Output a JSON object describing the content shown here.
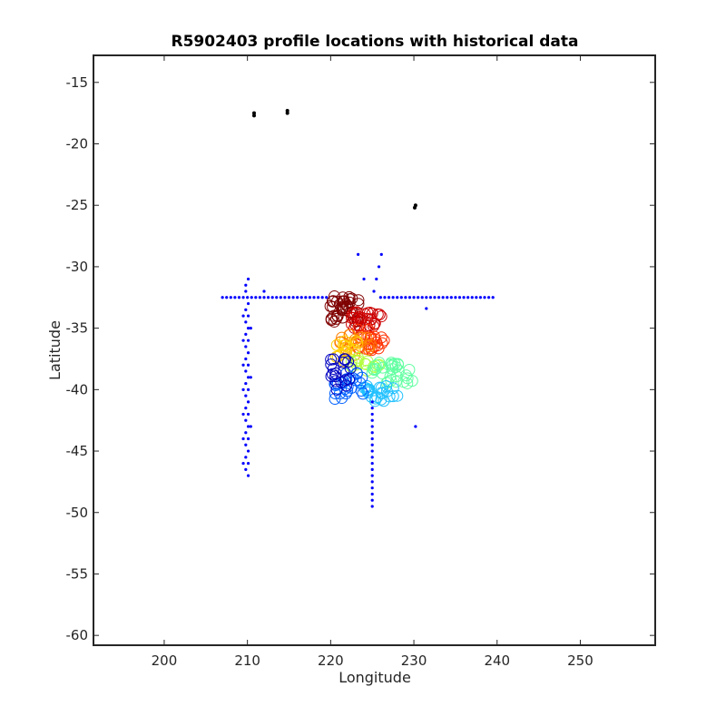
{
  "chart_data": {
    "type": "scatter",
    "title": "R5902403 profile locations with historical data",
    "xlabel": "Longitude",
    "ylabel": "Latitude",
    "xlim": [
      191.5,
      259.0
    ],
    "ylim": [
      -60.8,
      -12.8
    ],
    "xticks": [
      200,
      210,
      220,
      230,
      240,
      250
    ],
    "yticks": [
      -15,
      -20,
      -25,
      -30,
      -35,
      -40,
      -45,
      -50,
      -55,
      -60
    ],
    "grid": false,
    "legend": "none",
    "colormap": "jet",
    "series": [
      {
        "marker": "dot",
        "color": "#0000ff",
        "points": [
          [
            207.0,
            -32.5
          ],
          [
            207.5,
            -32.5
          ],
          [
            208.0,
            -32.5
          ],
          [
            208.5,
            -32.5
          ],
          [
            209.0,
            -32.5
          ],
          [
            209.5,
            -32.5
          ],
          [
            210.0,
            -32.5
          ],
          [
            210.5,
            -32.5
          ],
          [
            211.0,
            -32.5
          ],
          [
            211.5,
            -32.5
          ],
          [
            212.0,
            -32.5
          ],
          [
            212.5,
            -32.5
          ],
          [
            213.0,
            -32.5
          ],
          [
            213.5,
            -32.5
          ],
          [
            214.0,
            -32.5
          ],
          [
            214.5,
            -32.5
          ],
          [
            215.0,
            -32.5
          ],
          [
            215.5,
            -32.5
          ],
          [
            216.0,
            -32.5
          ],
          [
            216.5,
            -32.5
          ],
          [
            217.0,
            -32.5
          ],
          [
            217.5,
            -32.5
          ],
          [
            218.0,
            -32.5
          ],
          [
            218.5,
            -32.5
          ],
          [
            219.0,
            -32.5
          ],
          [
            219.5,
            -32.5
          ],
          [
            226.0,
            -32.5
          ],
          [
            226.5,
            -32.5
          ],
          [
            227.0,
            -32.5
          ],
          [
            227.5,
            -32.5
          ],
          [
            228.0,
            -32.5
          ],
          [
            228.5,
            -32.5
          ],
          [
            229.0,
            -32.5
          ],
          [
            229.5,
            -32.5
          ],
          [
            230.0,
            -32.5
          ],
          [
            230.5,
            -32.5
          ],
          [
            231.0,
            -32.5
          ],
          [
            231.5,
            -32.5
          ],
          [
            232.0,
            -32.5
          ],
          [
            232.5,
            -32.5
          ],
          [
            233.0,
            -32.5
          ],
          [
            233.5,
            -32.5
          ],
          [
            234.0,
            -32.5
          ],
          [
            234.5,
            -32.5
          ],
          [
            235.0,
            -32.5
          ],
          [
            235.5,
            -32.5
          ],
          [
            236.0,
            -32.5
          ],
          [
            236.5,
            -32.5
          ],
          [
            237.0,
            -32.5
          ],
          [
            237.5,
            -32.5
          ],
          [
            238.0,
            -32.5
          ],
          [
            238.5,
            -32.5
          ],
          [
            239.0,
            -32.5
          ],
          [
            239.5,
            -32.5
          ],
          [
            209.8,
            -31.5
          ],
          [
            210.1,
            -31.0
          ],
          [
            209.8,
            -32.0
          ],
          [
            210.1,
            -33.0
          ],
          [
            209.8,
            -33.5
          ],
          [
            210.1,
            -34.0
          ],
          [
            209.8,
            -34.5
          ],
          [
            210.1,
            -35.0
          ],
          [
            209.8,
            -35.5
          ],
          [
            210.1,
            -36.0
          ],
          [
            209.8,
            -36.5
          ],
          [
            210.1,
            -37.0
          ],
          [
            209.8,
            -37.5
          ],
          [
            210.1,
            -38.0
          ],
          [
            209.8,
            -38.5
          ],
          [
            210.1,
            -39.0
          ],
          [
            209.8,
            -39.5
          ],
          [
            210.1,
            -40.0
          ],
          [
            209.8,
            -40.5
          ],
          [
            210.1,
            -41.0
          ],
          [
            209.8,
            -41.5
          ],
          [
            210.1,
            -42.0
          ],
          [
            209.8,
            -42.5
          ],
          [
            210.1,
            -43.0
          ],
          [
            209.8,
            -43.5
          ],
          [
            210.1,
            -44.0
          ],
          [
            209.8,
            -44.5
          ],
          [
            210.1,
            -45.0
          ],
          [
            209.8,
            -45.5
          ],
          [
            210.1,
            -46.0
          ],
          [
            209.8,
            -46.5
          ],
          [
            210.1,
            -47.0
          ],
          [
            209.5,
            -34.0
          ],
          [
            209.5,
            -36.0
          ],
          [
            209.5,
            -38.0
          ],
          [
            209.5,
            -40.0
          ],
          [
            209.5,
            -42.0
          ],
          [
            209.5,
            -44.0
          ],
          [
            209.5,
            -46.0
          ],
          [
            210.4,
            -35.0
          ],
          [
            210.4,
            -39.0
          ],
          [
            210.4,
            -43.0
          ],
          [
            212.0,
            -32.0
          ],
          [
            223.3,
            -29.0
          ],
          [
            224.0,
            -31.0
          ],
          [
            226.1,
            -29.0
          ],
          [
            225.8,
            -30.0
          ],
          [
            225.5,
            -31.0
          ],
          [
            225.2,
            -32.0
          ],
          [
            231.5,
            -33.4
          ],
          [
            230.2,
            -43.0
          ],
          [
            225.0,
            -41.0
          ],
          [
            225.0,
            -41.5
          ],
          [
            225.0,
            -42.0
          ],
          [
            225.0,
            -42.5
          ],
          [
            225.0,
            -43.0
          ],
          [
            225.0,
            -43.5
          ],
          [
            225.0,
            -44.0
          ],
          [
            225.0,
            -44.5
          ],
          [
            225.0,
            -45.0
          ],
          [
            225.0,
            -45.5
          ],
          [
            225.0,
            -46.0
          ],
          [
            225.0,
            -46.5
          ],
          [
            225.0,
            -47.0
          ],
          [
            225.0,
            -47.5
          ],
          [
            225.0,
            -48.0
          ],
          [
            225.0,
            -48.5
          ],
          [
            225.0,
            -49.0
          ],
          [
            225.0,
            -49.5
          ]
        ]
      },
      {
        "marker": "dot",
        "color": "#000000",
        "points": [
          [
            210.8,
            -17.5
          ],
          [
            210.8,
            -17.7
          ],
          [
            214.8,
            -17.3
          ],
          [
            214.8,
            -17.5
          ],
          [
            230.2,
            -25.0
          ],
          [
            230.1,
            -25.2
          ]
        ]
      },
      {
        "marker": "circle",
        "colored_by": "profile order",
        "clusters": [
          {
            "color": "#7f0000",
            "lon": [
              219.8,
              223.5
            ],
            "lat": [
              -32.3,
              -34.5
            ],
            "count": 40
          },
          {
            "color": "#cc0000",
            "lon": [
              222.5,
              226.5
            ],
            "lat": [
              -33.7,
              -35.0
            ],
            "count": 30
          },
          {
            "color": "#ff3000",
            "lon": [
              223.0,
              226.5
            ],
            "lat": [
              -35.0,
              -36.8
            ],
            "count": 25
          },
          {
            "color": "#ff8000",
            "lon": [
              221.0,
              225.0
            ],
            "lat": [
              -35.5,
              -37.2
            ],
            "count": 20
          },
          {
            "color": "#ffd000",
            "lon": [
              220.5,
              223.5
            ],
            "lat": [
              -36.0,
              -37.8
            ],
            "count": 15
          },
          {
            "color": "#b0ff40",
            "lon": [
              222.0,
              226.0
            ],
            "lat": [
              -37.2,
              -38.5
            ],
            "count": 15
          },
          {
            "color": "#60ffa0",
            "lon": [
              225.0,
              230.0
            ],
            "lat": [
              -37.8,
              -39.5
            ],
            "count": 30
          },
          {
            "color": "#20c0ff",
            "lon": [
              224.0,
              228.5
            ],
            "lat": [
              -39.5,
              -41.0
            ],
            "count": 25
          },
          {
            "color": "#0060ff",
            "lon": [
              220.5,
              224.0
            ],
            "lat": [
              -38.5,
              -40.8
            ],
            "count": 25
          },
          {
            "color": "#0000c0",
            "lon": [
              220.0,
              222.5
            ],
            "lat": [
              -37.5,
              -40.0
            ],
            "count": 20
          }
        ]
      }
    ]
  }
}
